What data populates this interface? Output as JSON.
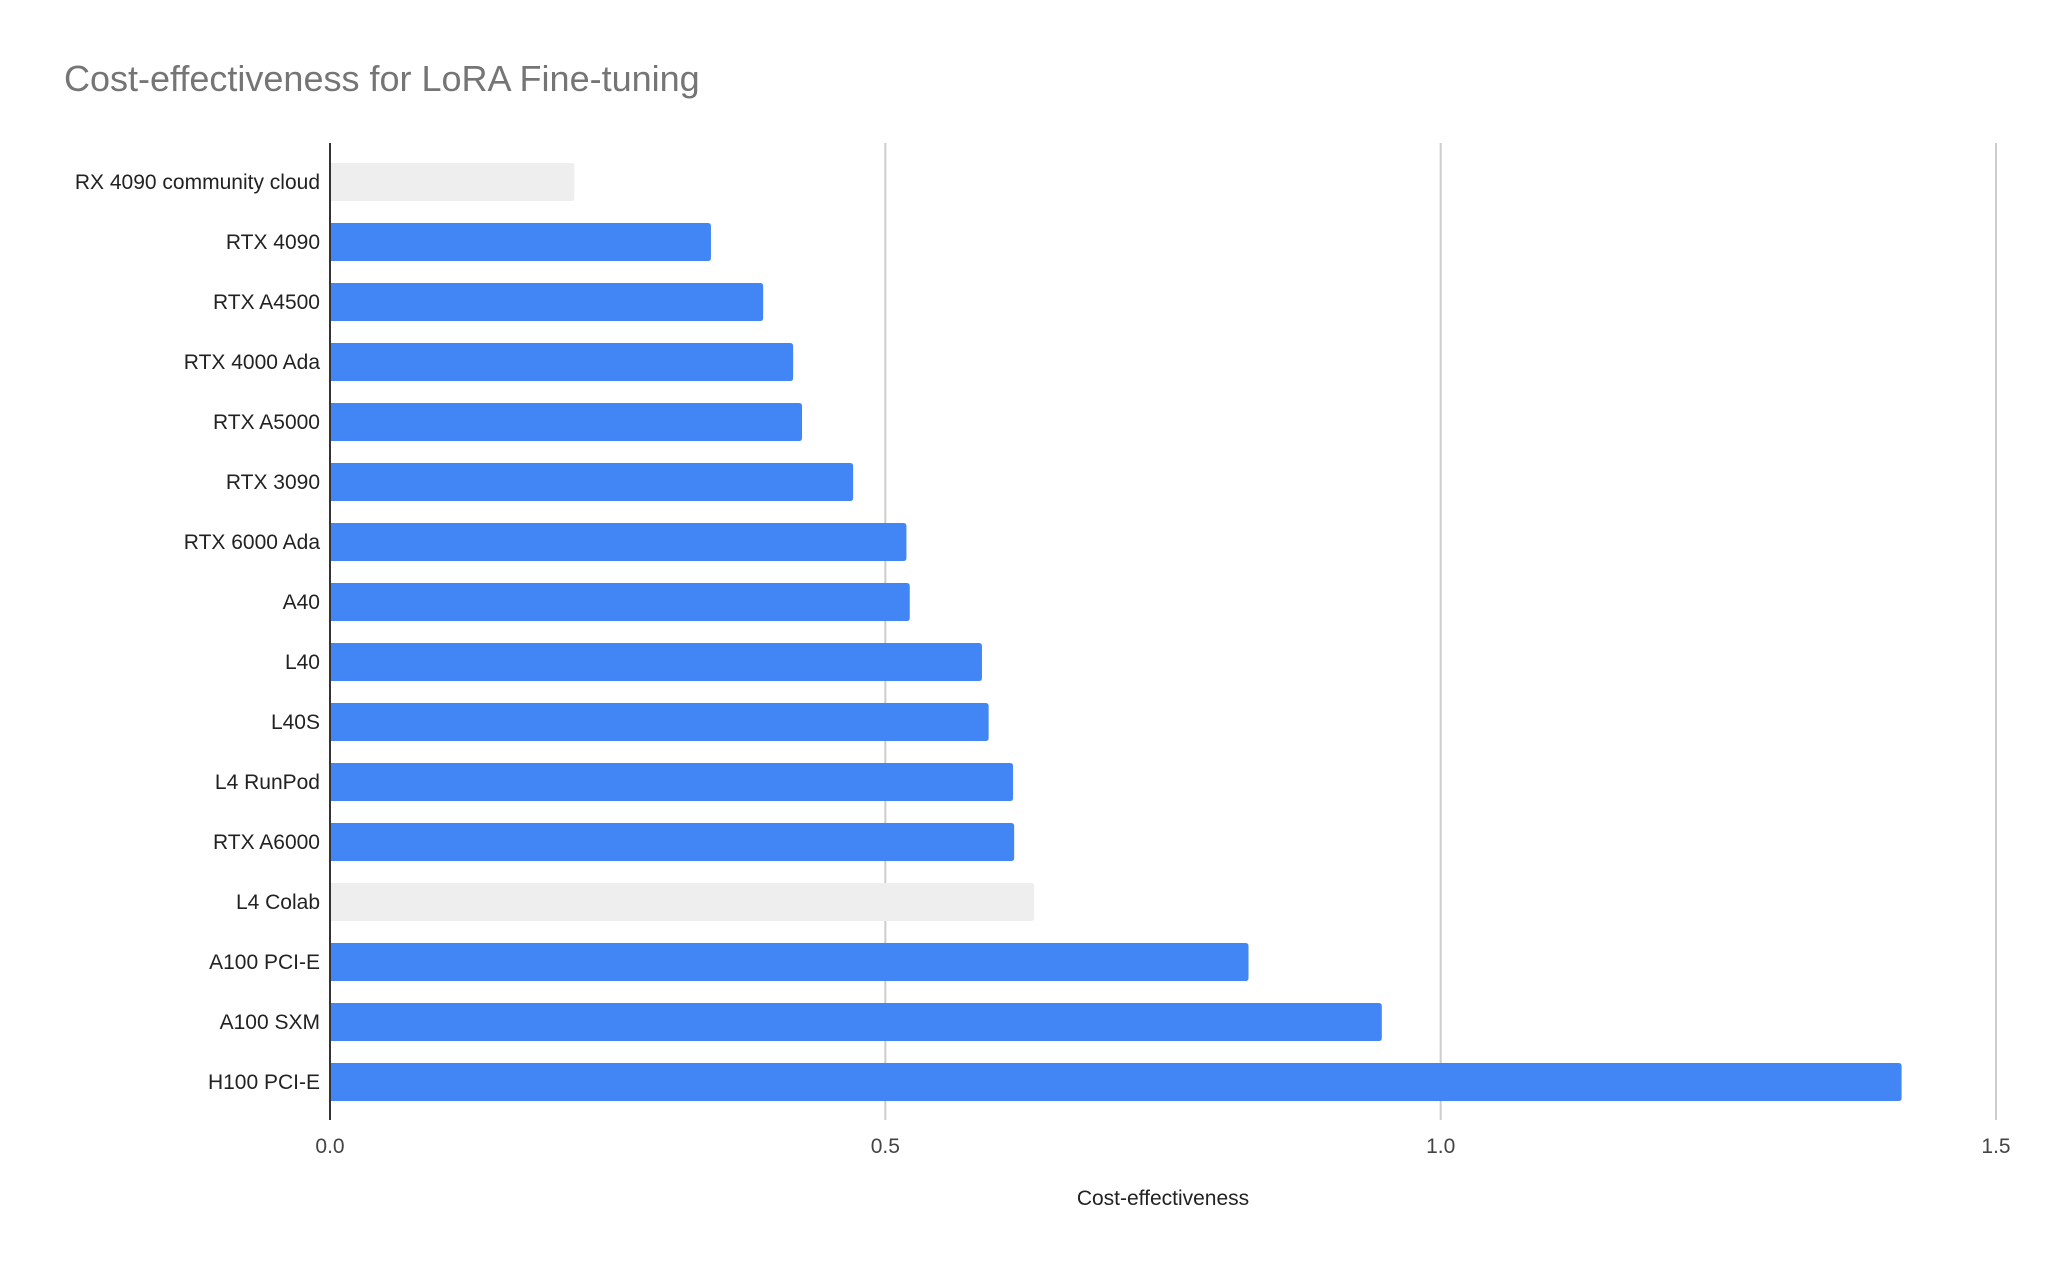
{
  "chart_data": {
    "type": "bar",
    "orientation": "horizontal",
    "title": "Cost-effectiveness for LoRA Fine-tuning",
    "xlabel": "Cost-effectiveness",
    "ylabel": "",
    "xlim": [
      0,
      1.5
    ],
    "xticks": [
      "0.0",
      "0.5",
      "1.0",
      "1.5"
    ],
    "xtick_values": [
      0,
      0.5,
      1.0,
      1.5
    ],
    "grid": "vertical",
    "legend": "none",
    "categories": [
      "RX 4090 community cloud",
      "RTX 4090",
      "RTX A4500",
      "RTX 4000 Ada",
      "RTX A5000",
      "RTX 3090",
      "RTX 6000 Ada",
      "A40",
      "L40",
      "L40S",
      "L4 RunPod",
      "RTX A6000",
      "L4 Colab",
      "A100 PCI-E",
      "A100 SXM",
      "H100 PCI-E"
    ],
    "values": [
      0.22,
      0.343,
      0.39,
      0.417,
      0.425,
      0.471,
      0.519,
      0.522,
      0.587,
      0.593,
      0.615,
      0.616,
      0.634,
      0.827,
      0.947,
      1.415
    ],
    "highlighted": [
      false,
      true,
      true,
      true,
      true,
      true,
      true,
      true,
      true,
      true,
      true,
      true,
      false,
      true,
      true,
      true
    ],
    "colors": {
      "bar": "#4285f4",
      "bar_muted": "#eeeeee",
      "gridline": "#cccccc",
      "axis": "#333333"
    }
  }
}
